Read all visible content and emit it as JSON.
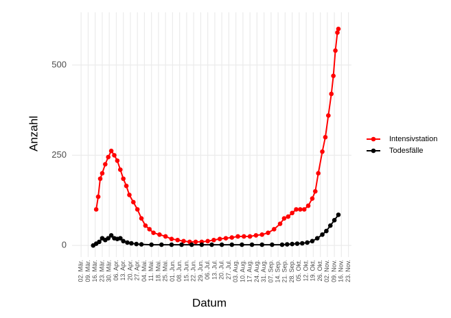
{
  "chart_data": {
    "type": "line",
    "x_label": "Datum",
    "y_label": "Anzahl",
    "xlim": [
      -9,
      269
    ],
    "ylim": [
      -32,
      646
    ],
    "xticks": [
      {
        "value": 0,
        "label": "02. Mär."
      },
      {
        "value": 7,
        "label": "09. Mär."
      },
      {
        "value": 14,
        "label": "16. Mär."
      },
      {
        "value": 21,
        "label": "23. Mär."
      },
      {
        "value": 28,
        "label": "30. Mär."
      },
      {
        "value": 35,
        "label": "06. Apr."
      },
      {
        "value": 42,
        "label": "13. Apr."
      },
      {
        "value": 49,
        "label": "20. Apr."
      },
      {
        "value": 56,
        "label": "27. Apr."
      },
      {
        "value": 63,
        "label": "04. Mai."
      },
      {
        "value": 70,
        "label": "11. Mai."
      },
      {
        "value": 77,
        "label": "18. Mai."
      },
      {
        "value": 84,
        "label": "25. Mai."
      },
      {
        "value": 91,
        "label": "01. Jun."
      },
      {
        "value": 98,
        "label": "08. Jun."
      },
      {
        "value": 105,
        "label": "15. Jun."
      },
      {
        "value": 112,
        "label": "22. Jun."
      },
      {
        "value": 119,
        "label": "29. Jun."
      },
      {
        "value": 126,
        "label": "06. Jul."
      },
      {
        "value": 133,
        "label": "13. Jul."
      },
      {
        "value": 140,
        "label": "20. Jul."
      },
      {
        "value": 147,
        "label": "27. Jul."
      },
      {
        "value": 154,
        "label": "03. Aug."
      },
      {
        "value": 161,
        "label": "10. Aug."
      },
      {
        "value": 168,
        "label": "17. Aug."
      },
      {
        "value": 175,
        "label": "24. Aug."
      },
      {
        "value": 182,
        "label": "31. Aug."
      },
      {
        "value": 189,
        "label": "07. Sep."
      },
      {
        "value": 196,
        "label": "14. Sep."
      },
      {
        "value": 203,
        "label": "21. Sep."
      },
      {
        "value": 210,
        "label": "28. Sep."
      },
      {
        "value": 217,
        "label": "05. Okt."
      },
      {
        "value": 224,
        "label": "12. Okt."
      },
      {
        "value": 231,
        "label": "19. Okt."
      },
      {
        "value": 238,
        "label": "26. Okt."
      },
      {
        "value": 245,
        "label": "02. Nov."
      },
      {
        "value": 252,
        "label": "09. Nov."
      },
      {
        "value": 259,
        "label": "16. Nov."
      },
      {
        "value": 266,
        "label": "23. Nov."
      }
    ],
    "yticks": [
      0,
      250,
      500
    ],
    "grid": true,
    "legend_position": "right",
    "series": [
      {
        "name": "Intensivstation",
        "color": "#ff0000",
        "x": [
          15,
          17,
          19,
          21,
          24,
          27,
          30,
          33,
          36,
          39,
          42,
          45,
          48,
          52,
          56,
          60,
          64,
          68,
          72,
          78,
          84,
          90,
          96,
          102,
          108,
          114,
          120,
          126,
          132,
          138,
          144,
          150,
          156,
          162,
          168,
          174,
          180,
          186,
          192,
          198,
          202,
          206,
          210,
          214,
          218,
          222,
          226,
          230,
          233,
          236,
          240,
          243,
          246,
          249,
          251,
          253,
          255,
          256
        ],
        "values": [
          100,
          135,
          185,
          200,
          225,
          245,
          262,
          250,
          235,
          210,
          185,
          165,
          140,
          120,
          100,
          75,
          55,
          45,
          35,
          30,
          25,
          18,
          15,
          12,
          10,
          10,
          10,
          12,
          15,
          18,
          20,
          22,
          25,
          25,
          25,
          28,
          30,
          35,
          45,
          60,
          75,
          80,
          90,
          100,
          100,
          100,
          110,
          130,
          150,
          200,
          260,
          300,
          360,
          420,
          470,
          540,
          590,
          600
        ]
      },
      {
        "name": "Todesfälle",
        "color": "#000000",
        "x": [
          12,
          15,
          18,
          21,
          24,
          27,
          30,
          33,
          36,
          39,
          42,
          46,
          50,
          55,
          60,
          70,
          80,
          90,
          100,
          110,
          120,
          130,
          140,
          150,
          160,
          170,
          180,
          190,
          200,
          205,
          210,
          215,
          220,
          225,
          230,
          235,
          240,
          244,
          248,
          252,
          256
        ],
        "values": [
          0,
          5,
          10,
          20,
          15,
          20,
          28,
          20,
          18,
          20,
          12,
          8,
          6,
          4,
          3,
          2,
          2,
          2,
          2,
          2,
          2,
          2,
          2,
          2,
          2,
          2,
          2,
          2,
          2,
          3,
          4,
          5,
          6,
          8,
          12,
          20,
          30,
          40,
          55,
          70,
          85
        ]
      }
    ]
  }
}
